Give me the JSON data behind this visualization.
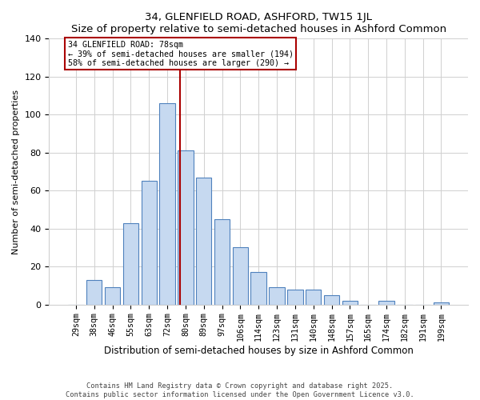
{
  "title": "34, GLENFIELD ROAD, ASHFORD, TW15 1JL",
  "subtitle": "Size of property relative to semi-detached houses in Ashford Common",
  "xlabel": "Distribution of semi-detached houses by size in Ashford Common",
  "ylabel": "Number of semi-detached properties",
  "bar_labels": [
    "29sqm",
    "38sqm",
    "46sqm",
    "55sqm",
    "63sqm",
    "72sqm",
    "80sqm",
    "89sqm",
    "97sqm",
    "106sqm",
    "114sqm",
    "123sqm",
    "131sqm",
    "140sqm",
    "148sqm",
    "157sqm",
    "165sqm",
    "174sqm",
    "182sqm",
    "191sqm",
    "199sqm"
  ],
  "bar_heights": [
    0,
    13,
    9,
    43,
    65,
    106,
    81,
    67,
    45,
    30,
    17,
    9,
    8,
    8,
    5,
    2,
    0,
    2,
    0,
    0,
    1
  ],
  "bar_color": "#c6d9f0",
  "bar_edge_color": "#4f81bd",
  "vline_x": 5.72,
  "annotation_title": "34 GLENFIELD ROAD: 78sqm",
  "annotation_line1": "← 39% of semi-detached houses are smaller (194)",
  "annotation_line2": "58% of semi-detached houses are larger (290) →",
  "vline_color": "#aa0000",
  "ylim": [
    0,
    140
  ],
  "yticks": [
    0,
    20,
    40,
    60,
    80,
    100,
    120,
    140
  ],
  "footer_line1": "Contains HM Land Registry data © Crown copyright and database right 2025.",
  "footer_line2": "Contains public sector information licensed under the Open Government Licence v3.0.",
  "bg_color": "#ffffff",
  "grid_color": "#d0d0d0"
}
